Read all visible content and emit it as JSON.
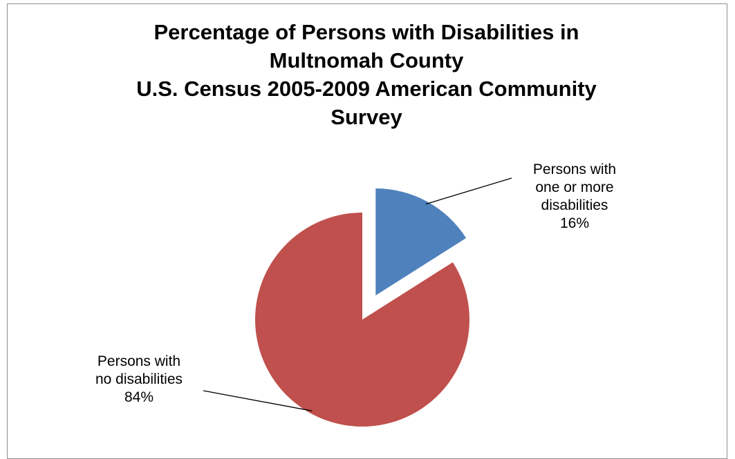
{
  "chart_data": {
    "type": "pie",
    "title_lines": [
      "Percentage of Persons with Disabilities in",
      "Multnomah County",
      "U.S. Census 2005-2009 American Community",
      "Survey"
    ],
    "slices": [
      {
        "label_lines": [
          "Persons with",
          "one or more",
          "disabilities"
        ],
        "value": 16,
        "value_label": "16%",
        "color": "#4f81bd",
        "exploded": true
      },
      {
        "label_lines": [
          "Persons with",
          "no disabilities"
        ],
        "value": 84,
        "value_label": "84%",
        "color": "#c0504d",
        "exploded": false
      }
    ],
    "start_angle": "12 o'clock, clockwise",
    "legend": "none",
    "label_leader_color": "#000000"
  }
}
